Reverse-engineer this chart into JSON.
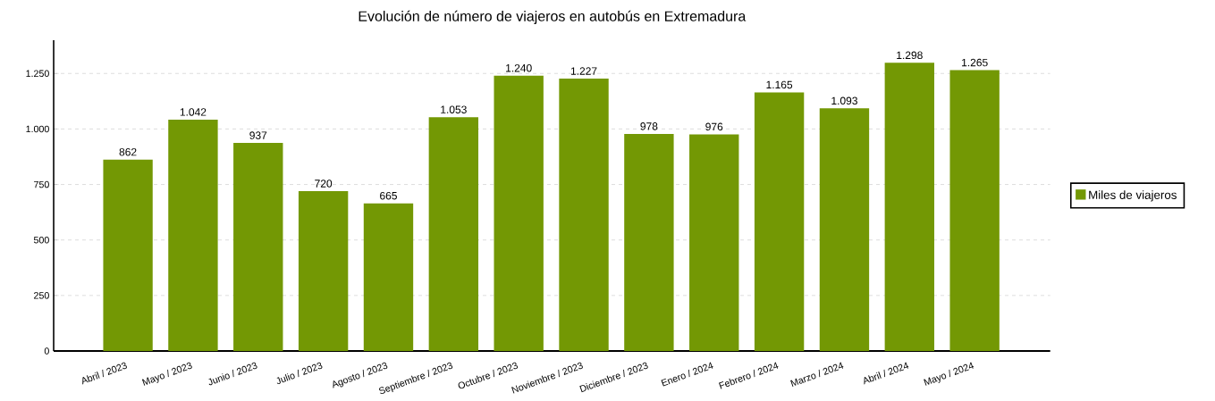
{
  "chart_data": {
    "type": "bar",
    "title": "Evolución de número de viajeros en autobús en Extremadura",
    "categories": [
      "Abril / 2023",
      "Mayo / 2023",
      "Junio / 2023",
      "Julio / 2023",
      "Agosto / 2023",
      "Septiembre / 2023",
      "Octubre / 2023",
      "Noviembre / 2023",
      "Diciembre / 2023",
      "Enero / 2024",
      "Febrero / 2024",
      "Marzo / 2024",
      "Abril / 2024",
      "Mayo / 2024"
    ],
    "series": [
      {
        "name": "Miles de viajeros",
        "color": "#739804",
        "values": [
          862,
          1042,
          937,
          720,
          665,
          1053,
          1240,
          1227,
          978,
          976,
          1165,
          1093,
          1298,
          1265
        ],
        "value_labels": [
          "862",
          "1.042",
          "937",
          "720",
          "665",
          "1.053",
          "1.240",
          "1.227",
          "978",
          "976",
          "1.165",
          "1.093",
          "1.298",
          "1.265"
        ]
      }
    ],
    "ylim": [
      0,
      1400
    ],
    "yticks": [
      0,
      250,
      500,
      750,
      {
        "value": 1000,
        "label": "1.000"
      },
      {
        "value": 1250,
        "label": "1.250"
      }
    ],
    "grid": "y",
    "legend": "right"
  }
}
